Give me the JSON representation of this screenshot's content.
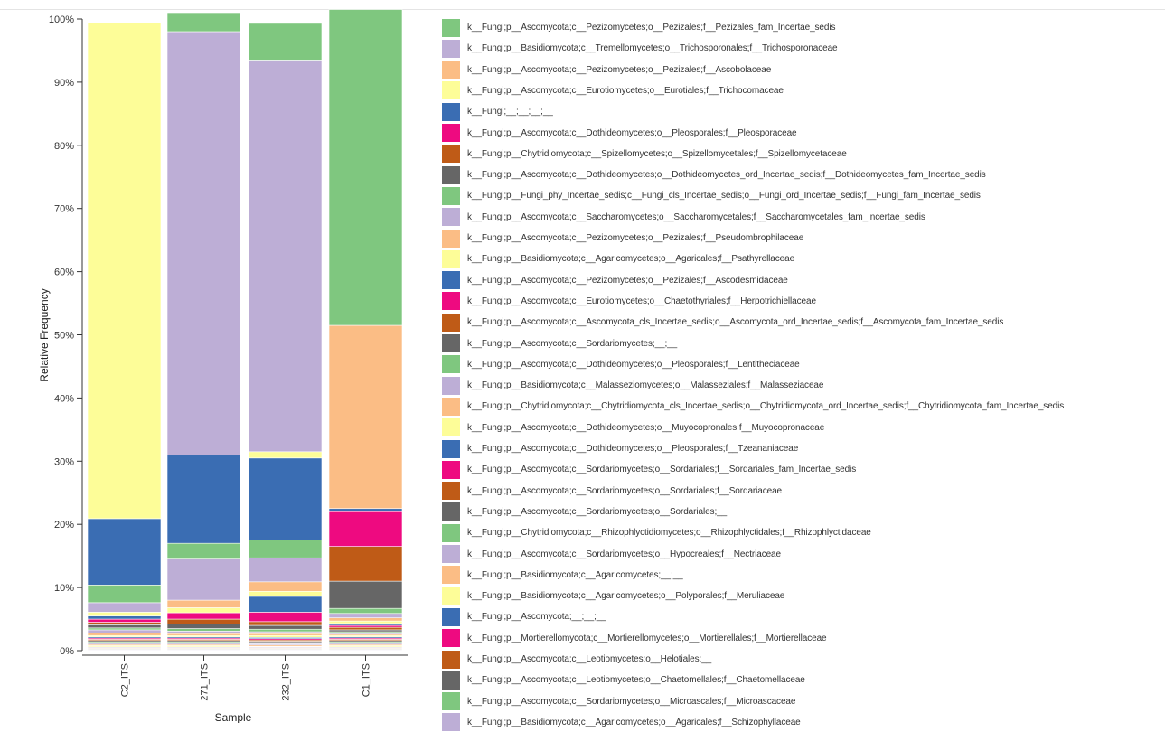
{
  "chart_data": {
    "type": "bar",
    "stacked": true,
    "xlabel": "Sample",
    "ylabel": "Relative Frequency",
    "ylim": [
      0,
      100
    ],
    "y_ticks": [
      "0%",
      "10%",
      "20%",
      "30%",
      "40%",
      "50%",
      "60%",
      "70%",
      "80%",
      "90%",
      "100%"
    ],
    "grid": false,
    "legend_position": "right",
    "categories": [
      "C2_ITS",
      "271_ITS",
      "232_ITS",
      "C1_ITS"
    ],
    "series": [
      {
        "name": "k__Fungi;p__Ascomycota;c__Pezizomycetes;o__Pezizales;f__Pezizales_fam_Incertae_sedis",
        "color": "#7fc77f",
        "values": [
          0,
          3.0,
          5.8,
          50.0
        ]
      },
      {
        "name": "k__Fungi;p__Basidiomycota;c__Tremellomycetes;o__Trichosporonales;f__Trichosporonaceae",
        "color": "#bdaed6",
        "values": [
          0,
          67.0,
          62.0,
          0
        ]
      },
      {
        "name": "k__Fungi;p__Ascomycota;c__Pezizomycetes;o__Pezizales;f__Ascobolaceae",
        "color": "#fbbd85",
        "values": [
          0,
          0,
          0,
          29.0
        ]
      },
      {
        "name": "k__Fungi;p__Ascomycota;c__Eurotiomycetes;o__Eurotiales;f__Trichocomaceae",
        "color": "#fdfd98",
        "values": [
          78.5,
          0,
          1.0,
          0
        ]
      },
      {
        "name": "k__Fungi;__;__;__;__",
        "color": "#3a6db3",
        "values": [
          10.5,
          14.0,
          13.0,
          0.5
        ]
      },
      {
        "name": "k__Fungi;p__Ascomycota;c__Dothideomycetes;o__Pleosporales;f__Pleosporaceae",
        "color": "#ee0a80",
        "values": [
          0,
          0,
          0,
          5.5
        ]
      },
      {
        "name": "k__Fungi;p__Chytridiomycota;c__Spizellomycetes;o__Spizellomycetales;f__Spizellomycetaceae",
        "color": "#bf5b17",
        "values": [
          0,
          0,
          0,
          5.5
        ]
      },
      {
        "name": "k__Fungi;p__Ascomycota;c__Dothideomycetes;o__Dothideomycetes_ord_Incertae_sedis;f__Dothideomycetes_fam_Incertae_sedis",
        "color": "#666666",
        "values": [
          0,
          0,
          0,
          4.3
        ]
      },
      {
        "name": "k__Fungi;p__Fungi_phy_Incertae_sedis;c__Fungi_cls_Incertae_sedis;o__Fungi_ord_Incertae_sedis;f__Fungi_fam_Incertae_sedis",
        "color": "#7fc77f",
        "values": [
          2.8,
          2.5,
          2.8,
          0.8
        ]
      },
      {
        "name": "k__Fungi;p__Ascomycota;c__Saccharomycetes;o__Saccharomycetales;f__Saccharomycetales_fam_Incertae_sedis",
        "color": "#bdaed6",
        "values": [
          1.5,
          6.5,
          3.8,
          0.7
        ]
      },
      {
        "name": "k__Fungi;p__Ascomycota;c__Pezizomycetes;o__Pezizales;f__Pseudombrophilaceae",
        "color": "#fbbd85",
        "values": [
          0,
          1.2,
          1.5,
          0.5
        ]
      },
      {
        "name": "k__Fungi;p__Basidiomycota;c__Agaricomycetes;o__Agaricales;f__Psathyrellaceae",
        "color": "#fdfd98",
        "values": [
          0.6,
          0.8,
          0.8,
          0.4
        ]
      },
      {
        "name": "k__Fungi;p__Ascomycota;c__Pezizomycetes;o__Pezizales;f__Ascodesmidaceae",
        "color": "#3a6db3",
        "values": [
          0.5,
          0,
          2.5,
          0.3
        ]
      },
      {
        "name": "k__Fungi;p__Ascomycota;c__Eurotiomycetes;o__Chaetothyriales;f__Herpotrichiellaceae",
        "color": "#ee0a80",
        "values": [
          0.5,
          1.0,
          1.5,
          0.3
        ]
      },
      {
        "name": "k__Fungi;p__Ascomycota;c__Ascomycota_cls_Incertae_sedis;o__Ascomycota_ord_Incertae_sedis;f__Ascomycota_fam_Incertae_sedis",
        "color": "#bf5b17",
        "values": [
          0.4,
          0.8,
          0.6,
          0.4
        ]
      },
      {
        "name": "k__Fungi;p__Ascomycota;c__Sordariomycetes;__;__",
        "color": "#666666",
        "values": [
          0.5,
          0.7,
          0.6,
          0.3
        ]
      },
      {
        "name": "k__Fungi;p__Ascomycota;c__Dothideomycetes;o__Pleosporales;f__Lentitheciaceae",
        "color": "#7fc77f",
        "values": [
          0.3,
          0.4,
          0.4,
          0.2
        ]
      },
      {
        "name": "k__Fungi;p__Basidiomycota;c__Malasseziomycetes;o__Malasseziales;f__Malasseziaceae",
        "color": "#bdaed6",
        "values": [
          0.5,
          0.4,
          0.3,
          0.2
        ]
      },
      {
        "name": "k__Fungi;p__Chytridiomycota;c__Chytridiomycota_cls_Incertae_sedis;o__Chytridiomycota_ord_Incertae_sedis;f__Chytridiomycota_fam_Incertae_sedis",
        "color": "#fbbd85",
        "values": [
          0.4,
          0.3,
          0.3,
          0.2
        ]
      },
      {
        "name": "k__Fungi;p__Ascomycota;c__Dothideomycetes;o__Muyocopronales;f__Muyocopronaceae",
        "color": "#fdfd98",
        "values": [
          0.2,
          0.2,
          0.3,
          0.2
        ]
      },
      {
        "name": "k__Fungi;p__Ascomycota;c__Dothideomycetes;o__Pleosporales;f__Tzeananiaceae",
        "color": "#3a6db3",
        "values": [
          0.2,
          0.2,
          0.2,
          0.2
        ]
      },
      {
        "name": "k__Fungi;p__Ascomycota;c__Sordariomycetes;o__Sordariales;f__Sordariales_fam_Incertae_sedis",
        "color": "#ee0a80",
        "values": [
          0.2,
          0.2,
          0.2,
          0.2
        ]
      },
      {
        "name": "k__Fungi;p__Ascomycota;c__Sordariomycetes;o__Sordariales;f__Sordariaceae",
        "color": "#bf5b17",
        "values": [
          0.2,
          0.2,
          0.2,
          0.2
        ]
      },
      {
        "name": "k__Fungi;p__Ascomycota;c__Sordariomycetes;o__Sordariales;__",
        "color": "#666666",
        "values": [
          0.2,
          0.2,
          0.2,
          0.2
        ]
      },
      {
        "name": "k__Fungi;p__Chytridiomycota;c__Rhizophlyctidiomycetes;o__Rhizophlyctidales;f__Rhizophlyctidaceae",
        "color": "#7fc77f",
        "values": [
          0.2,
          0.2,
          0.2,
          0.2
        ]
      },
      {
        "name": "k__Fungi;p__Ascomycota;c__Sordariomycetes;o__Hypocreales;f__Nectriaceae",
        "color": "#bdaed6",
        "values": [
          0.2,
          0.2,
          0.2,
          0.2
        ]
      },
      {
        "name": "k__Fungi;p__Basidiomycota;c__Agaricomycetes;__;__",
        "color": "#fbbd85",
        "values": [
          0.2,
          0.2,
          0.2,
          0.2
        ]
      },
      {
        "name": "k__Fungi;p__Basidiomycota;c__Agaricomycetes;o__Polyporales;f__Meruliaceae",
        "color": "#fdfd98",
        "values": [
          0.2,
          0.2,
          0.1,
          0.2
        ]
      },
      {
        "name": "k__Fungi;p__Ascomycota;__;__;__",
        "color": "#3a6db3",
        "values": [
          0.1,
          0.1,
          0.1,
          0.1
        ]
      },
      {
        "name": "k__Fungi;p__Mortierellomycota;c__Mortierellomycetes;o__Mortierellales;f__Mortierellaceae",
        "color": "#ee0a80",
        "values": [
          0.1,
          0.1,
          0.1,
          0.1
        ]
      },
      {
        "name": "k__Fungi;p__Ascomycota;c__Leotiomycetes;o__Helotiales;__",
        "color": "#bf5b17",
        "values": [
          0.1,
          0.1,
          0.1,
          0.1
        ]
      },
      {
        "name": "k__Fungi;p__Ascomycota;c__Leotiomycetes;o__Chaetomellales;f__Chaetomellaceae",
        "color": "#666666",
        "values": [
          0.1,
          0.1,
          0.1,
          0.1
        ]
      },
      {
        "name": "k__Fungi;p__Ascomycota;c__Sordariomycetes;o__Microascales;f__Microascaceae",
        "color": "#7fc77f",
        "values": [
          0.1,
          0.1,
          0.1,
          0.1
        ]
      },
      {
        "name": "k__Fungi;p__Basidiomycota;c__Agaricomycetes;o__Agaricales;f__Schizophyllaceae",
        "color": "#bdaed6",
        "values": [
          0.1,
          0.1,
          0.1,
          0.1
        ]
      }
    ]
  }
}
